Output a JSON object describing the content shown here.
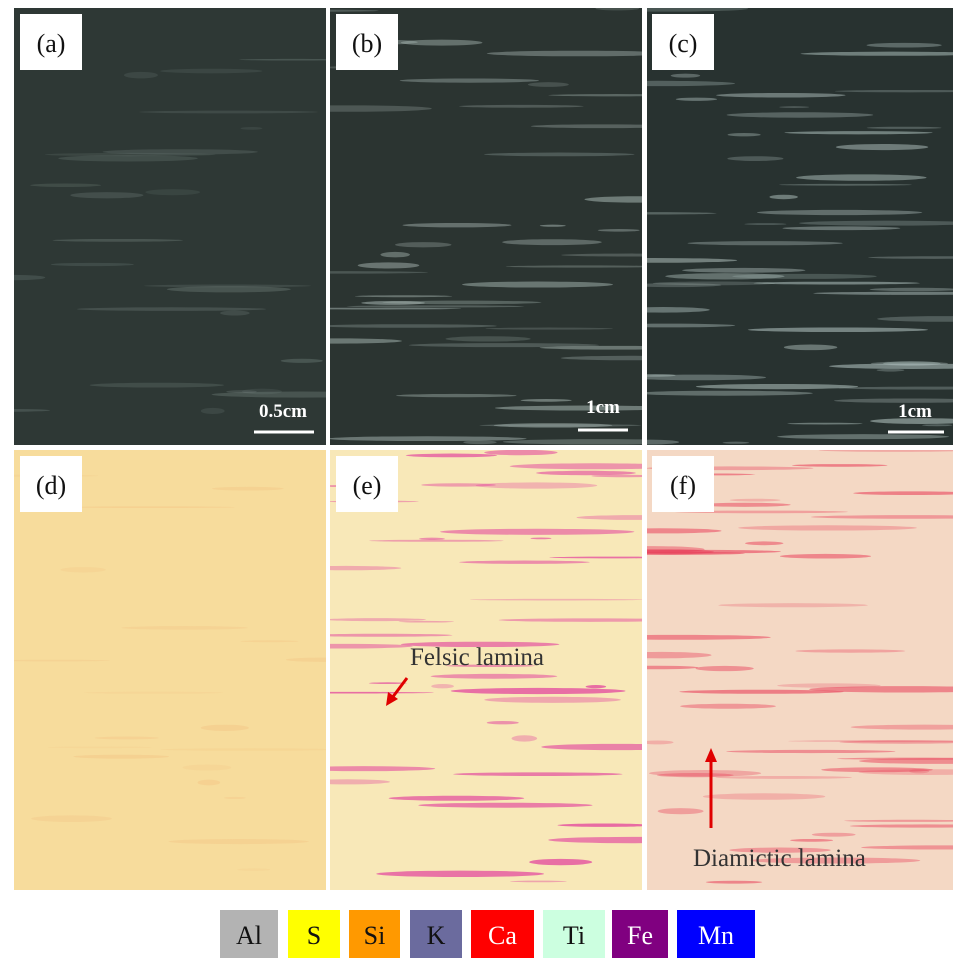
{
  "panels": [
    {
      "label": "(a)",
      "scale_bar": "0.5cm"
    },
    {
      "label": "(b)",
      "scale_bar": "1cm"
    },
    {
      "label": "(c)",
      "scale_bar": "1cm"
    },
    {
      "label": "(d)"
    },
    {
      "label": "(e)",
      "annotation": "Felsic lamina"
    },
    {
      "label": "(f)",
      "annotation": "Diamictic lamina"
    }
  ],
  "legend": [
    {
      "label": "Al",
      "color": "#b3b3b3"
    },
    {
      "label": "S",
      "color": "#ffff00"
    },
    {
      "label": "Si",
      "color": "#ff9900"
    },
    {
      "label": "K",
      "color": "#6b6b9e"
    },
    {
      "label": "Ca",
      "color": "#ff0000"
    },
    {
      "label": "Ti",
      "color": "#ccffe0"
    },
    {
      "label": "Fe",
      "color": "#800080"
    },
    {
      "label": "Mn",
      "color": "#0000ff"
    }
  ]
}
